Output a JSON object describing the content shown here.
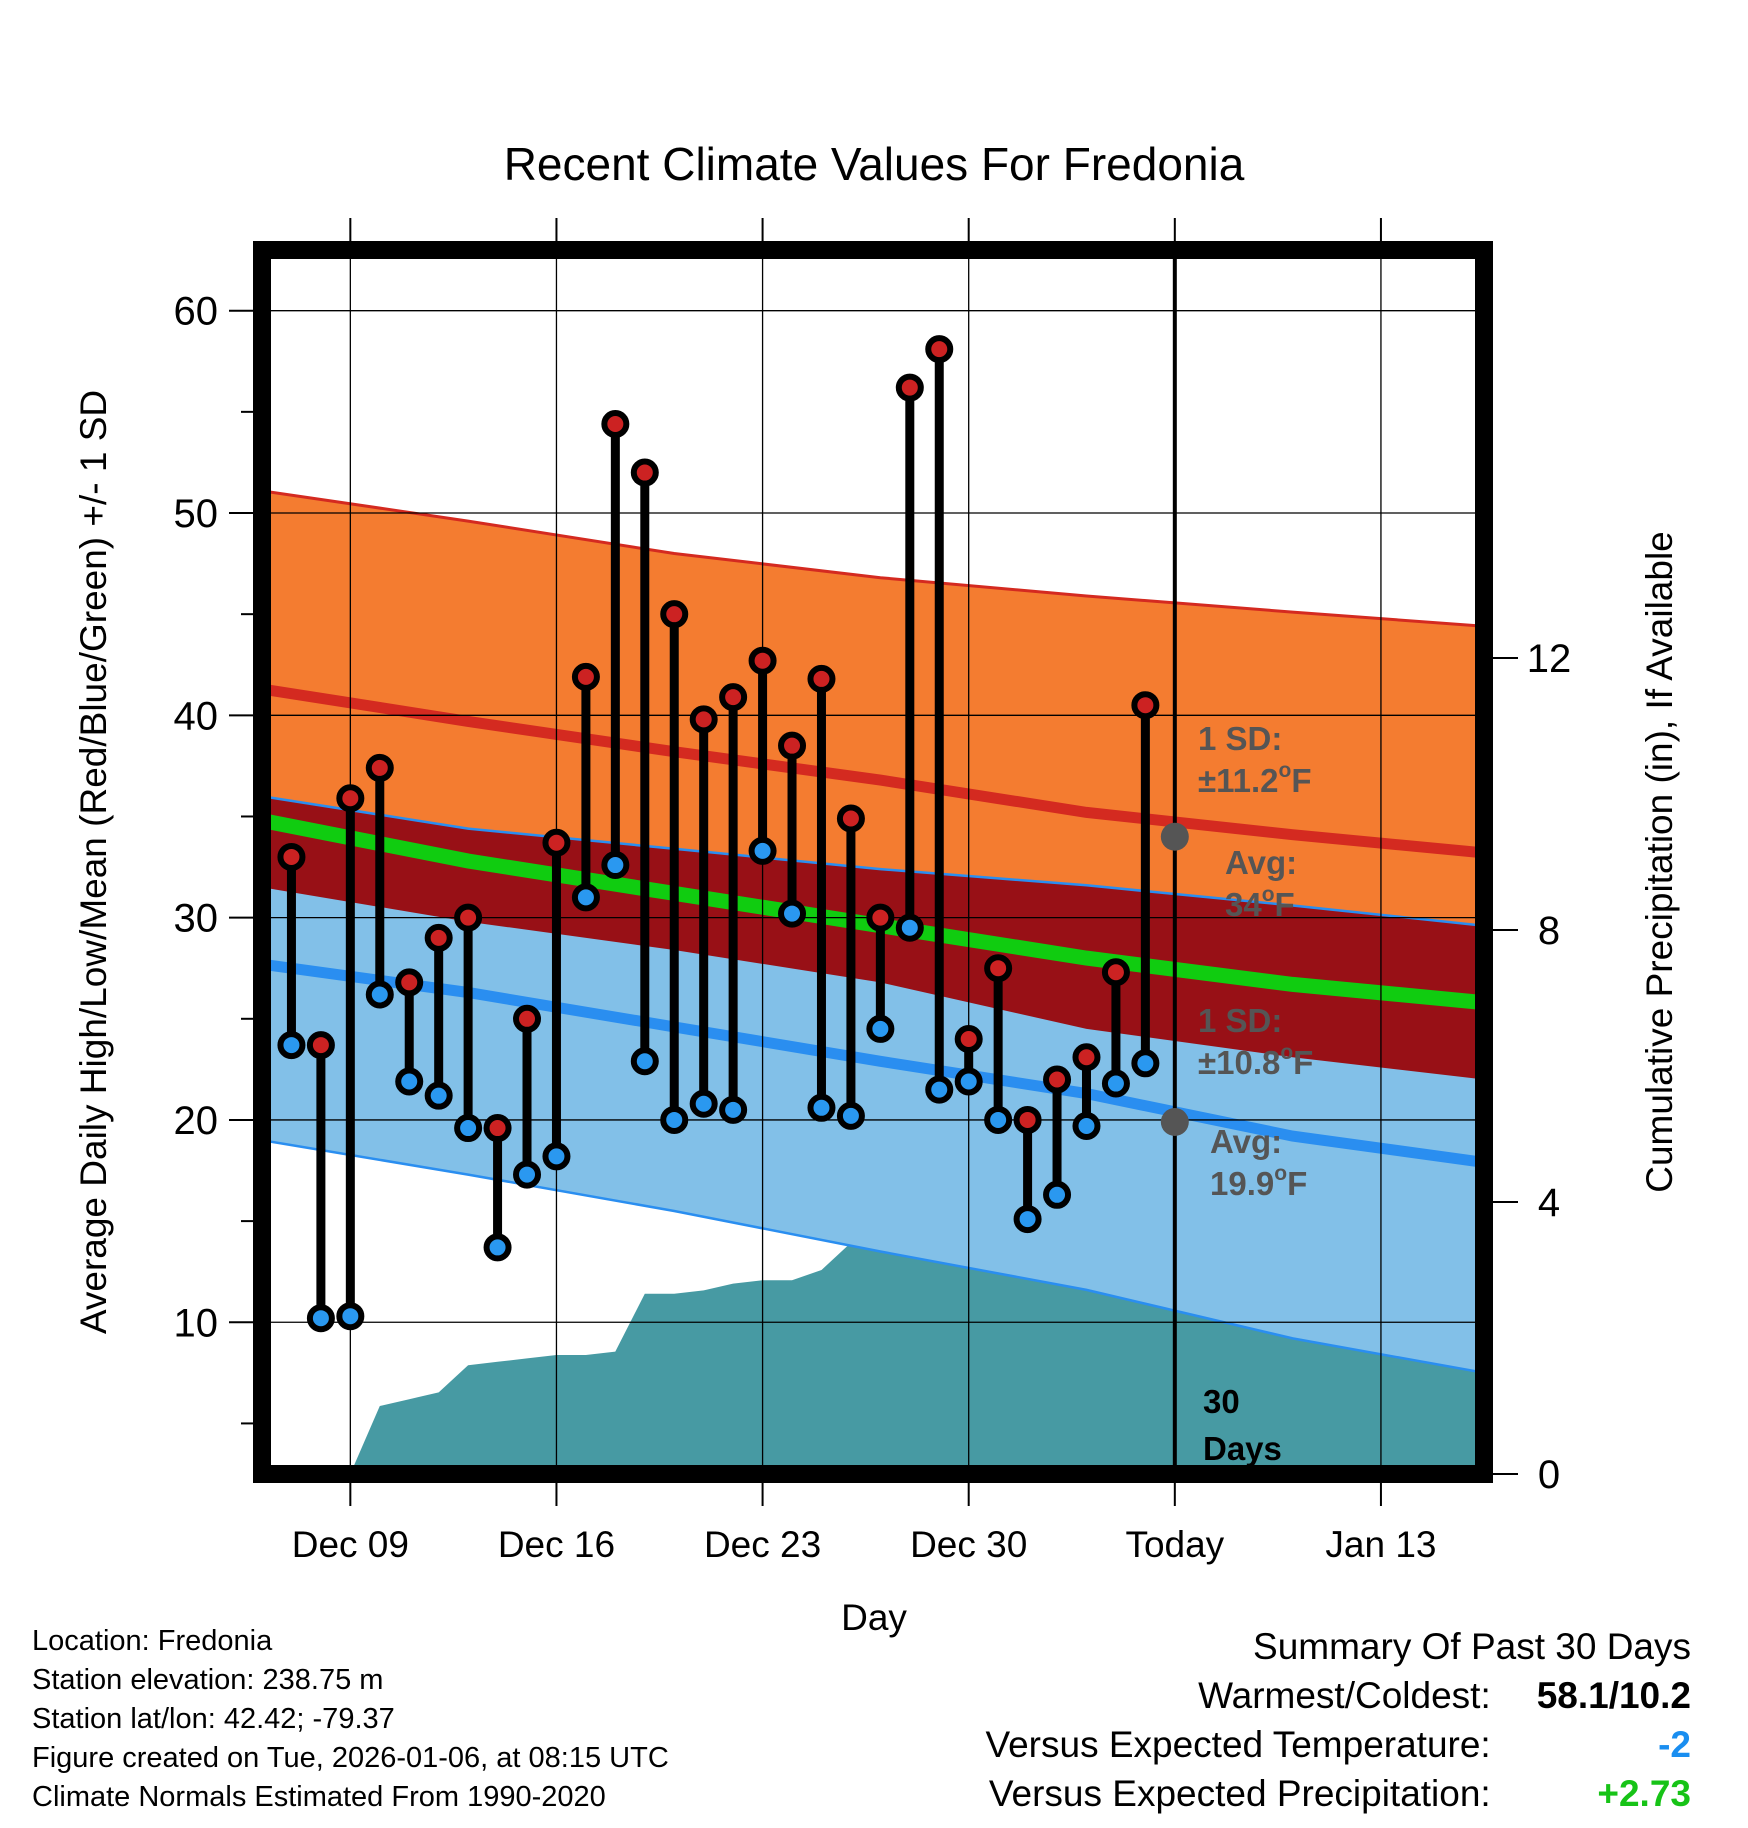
{
  "chart_data": {
    "type": "line",
    "title": "Recent Climate Values For Fredonia",
    "xlabel": "Day",
    "ylabel": "Average Daily High/Low/Mean (Red/Blue/Green) +/- 1 SD",
    "y2label": "Cumulative Precipitation (in), If Available",
    "ylim": [
      2.5,
      63
    ],
    "y2lim": [
      0,
      18
    ],
    "y_ticks": [
      "10",
      "20",
      "30",
      "40",
      "50",
      "60"
    ],
    "y2_ticks": [
      "0",
      "4",
      "8",
      "12"
    ],
    "x_ticks": [
      "Dec 09",
      "Dec 16",
      "Dec 23",
      "Dec 30",
      "Today",
      "Jan 13"
    ],
    "x_tick_days": [
      3,
      10,
      17,
      24,
      31,
      38
    ],
    "xlim": [
      0,
      41.5
    ],
    "today_day": 31,
    "daily_highs": [
      33.0,
      23.7,
      35.9,
      37.4,
      26.8,
      29.0,
      30.0,
      19.6,
      25.0,
      33.7,
      41.9,
      54.4,
      52.0,
      45.0,
      39.8,
      40.9,
      42.7,
      38.5,
      41.8,
      34.9,
      30.0,
      56.2,
      58.1,
      24.0,
      27.5,
      20.0,
      22.0,
      23.1,
      27.3,
      40.5
    ],
    "daily_lows": [
      23.7,
      10.2,
      10.3,
      26.2,
      21.9,
      21.2,
      19.6,
      13.7,
      17.3,
      18.2,
      31.0,
      32.6,
      22.9,
      20.0,
      20.8,
      20.5,
      33.3,
      30.2,
      20.6,
      20.2,
      24.5,
      29.5,
      21.5,
      21.9,
      20.0,
      15.1,
      16.3,
      19.7,
      21.8,
      22.8
    ],
    "normal_days": [
      0,
      7,
      14,
      21,
      28,
      35,
      41.5
    ],
    "normal_high": [
      41.3,
      39.7,
      38.2,
      36.8,
      35.2,
      34.1,
      33.2
    ],
    "normal_high_upper": [
      51.1,
      49.6,
      48.0,
      46.8,
      45.9,
      45.1,
      44.4
    ],
    "normal_mean": [
      34.8,
      32.8,
      31.2,
      29.6,
      28.0,
      26.7,
      25.8
    ],
    "normal_low": [
      27.7,
      26.3,
      24.6,
      22.9,
      21.3,
      19.2,
      17.9
    ],
    "normal_low_upper": [
      36.0,
      34.4,
      33.4,
      32.4,
      31.6,
      30.6,
      29.6
    ],
    "normal_low_lower": [
      19.0,
      17.3,
      15.5,
      13.5,
      11.6,
      9.2,
      7.5
    ],
    "precip_days": [
      0,
      3,
      4,
      5,
      6,
      7,
      8,
      9,
      10,
      11,
      12,
      13,
      14,
      15,
      16,
      17,
      18,
      19,
      20,
      21,
      22,
      23,
      24,
      25,
      26,
      27,
      28,
      29,
      30,
      31,
      41.5
    ],
    "cumulative_precip": [
      0,
      0,
      1.0,
      1.1,
      1.2,
      1.6,
      1.65,
      1.7,
      1.75,
      1.75,
      1.8,
      2.65,
      2.65,
      2.7,
      2.8,
      2.85,
      2.85,
      3.0,
      3.4,
      3.8,
      4.8,
      5.0,
      5.0,
      5.4,
      5.7,
      6.0,
      6.1,
      6.15,
      6.15,
      6.15,
      6.15
    ],
    "annotations": {
      "high_sd_label": "1 SD:",
      "high_sd_value": "±11.2°F",
      "high_avg_label": "Avg:",
      "high_avg_value": "34°F",
      "high_avg_temp": 34,
      "low_sd_label": "1 SD:",
      "low_sd_value": "±10.8°F",
      "low_avg_label": "Avg:",
      "low_avg_value": "19.9°F",
      "low_avg_temp": 19.9,
      "days_count": "30",
      "days_label": "Days"
    },
    "colors": {
      "high_band": "#f47c30",
      "high_line": "#d42a20",
      "overlap_band": "#981016",
      "low_band": "#82c0e8",
      "low_line": "#2a8ef0",
      "mean_line": "#10cc10",
      "precip_fill": "#479aa3",
      "high_marker": "#cc2222",
      "low_marker": "#2a98f0",
      "annotation_text": "#555555"
    }
  },
  "footer": {
    "location": "Location: Fredonia",
    "elevation": "Station elevation: 238.75 m",
    "latlon": "Station lat/lon: 42.42; -79.37",
    "created": "Figure created on Tue, 2026-01-06, at 08:15 UTC",
    "normals": "Climate Normals Estimated From 1990-2020"
  },
  "summary": {
    "title": "Summary Of Past 30 Days",
    "warmest_coldest_label": "Warmest/Coldest:",
    "warmest_coldest_value": "58.1/10.2",
    "temp_label": "Versus Expected Temperature:",
    "temp_value": "-2",
    "precip_label": "Versus Expected Precipitation:",
    "precip_value": "+2.73"
  }
}
